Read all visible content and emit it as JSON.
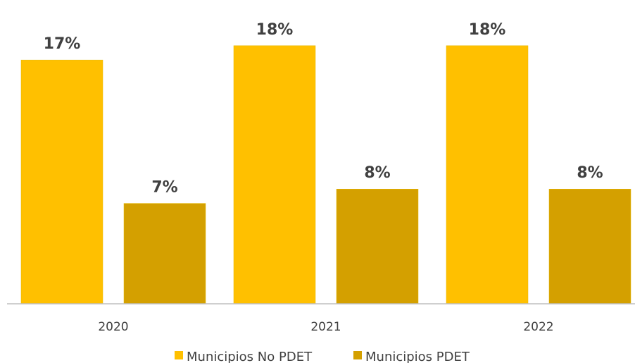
{
  "chart_data": {
    "type": "bar",
    "categories": [
      "2020",
      "2021",
      "2022"
    ],
    "series": [
      {
        "name": "Municipios No PDET",
        "color": "#FFC000",
        "values": [
          17,
          18,
          18
        ],
        "labels": [
          "17%",
          "18%",
          "18%"
        ]
      },
      {
        "name": "Municipios PDET",
        "color": "#D4A000",
        "values": [
          7,
          8,
          8
        ],
        "labels": [
          "7%",
          "8%",
          "8%"
        ]
      }
    ],
    "unit": "%",
    "ylim": [
      0,
      20
    ],
    "grid": false,
    "legend_position": "bottom",
    "title": "",
    "xlabel": "",
    "ylabel": ""
  }
}
